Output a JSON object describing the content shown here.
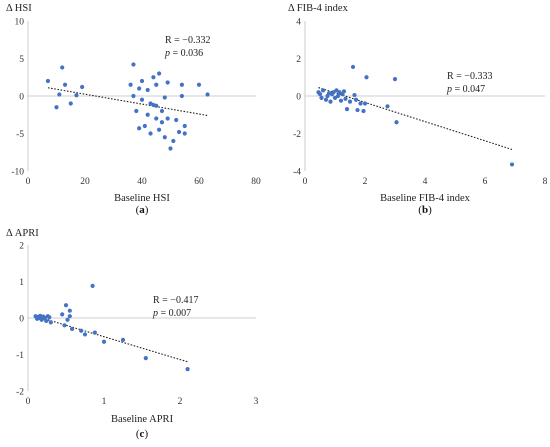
{
  "chart_data": [
    {
      "type": "scatter",
      "panel": "(a)",
      "panel_letter": "a",
      "ylabel": "Δ HSI",
      "xlabel": "Baseline HSI",
      "xlim": [
        0,
        80
      ],
      "ylim": [
        -10,
        10
      ],
      "xticks": [
        0,
        20,
        40,
        60,
        80
      ],
      "yticks": [
        -10,
        -5,
        0,
        5,
        10
      ],
      "annotation_r": "R = −0.332",
      "annotation_p_label": "p",
      "annotation_p_value": " = 0.036",
      "trendline": {
        "x": [
          7,
          63
        ],
        "y": [
          1.1,
          -2.6
        ]
      },
      "points": [
        [
          7,
          2.0
        ],
        [
          10,
          -1.5
        ],
        [
          11,
          0.2
        ],
        [
          12,
          3.8
        ],
        [
          13,
          1.5
        ],
        [
          15,
          -1.0
        ],
        [
          17,
          0.1
        ],
        [
          19,
          1.2
        ],
        [
          36,
          1.5
        ],
        [
          37,
          4.2
        ],
        [
          37,
          0.0
        ],
        [
          38,
          -2.0
        ],
        [
          39,
          -4.3
        ],
        [
          39,
          1.0
        ],
        [
          40,
          2.0
        ],
        [
          40,
          -0.5
        ],
        [
          41,
          -4.0
        ],
        [
          42,
          -2.5
        ],
        [
          42,
          0.8
        ],
        [
          43,
          -5.0
        ],
        [
          43,
          -1.0
        ],
        [
          44,
          -1.2
        ],
        [
          44,
          2.5
        ],
        [
          45,
          -1.3
        ],
        [
          45,
          -3.0
        ],
        [
          45,
          1.5
        ],
        [
          46,
          3.0
        ],
        [
          46,
          -4.5
        ],
        [
          47,
          -2.0
        ],
        [
          47,
          -3.5
        ],
        [
          48,
          -5.5
        ],
        [
          48,
          -0.2
        ],
        [
          49,
          1.8
        ],
        [
          49,
          -3.0
        ],
        [
          50,
          -7.0
        ],
        [
          51,
          -6.0
        ],
        [
          52,
          -3.2
        ],
        [
          53,
          -4.8
        ],
        [
          54,
          1.5
        ],
        [
          54,
          0.0
        ],
        [
          55,
          -4.0
        ],
        [
          55,
          -5.0
        ],
        [
          60,
          1.5
        ],
        [
          63,
          0.2
        ]
      ]
    },
    {
      "type": "scatter",
      "panel": "(b)",
      "panel_letter": "b",
      "ylabel": "Δ FIB-4 index",
      "xlabel": "Baseline FIB-4 index",
      "xlim": [
        0,
        8
      ],
      "ylim": [
        -4,
        4
      ],
      "xticks": [
        0,
        2,
        4,
        6,
        8
      ],
      "yticks": [
        -4,
        -2,
        0,
        2,
        4
      ],
      "annotation_r": "R = −0.333",
      "annotation_p_label": "p",
      "annotation_p_value": " = 0.047",
      "trendline": {
        "x": [
          0.45,
          6.9
        ],
        "y": [
          0.45,
          -2.85
        ]
      },
      "points": [
        [
          0.45,
          0.2
        ],
        [
          0.5,
          0.1
        ],
        [
          0.55,
          -0.1
        ],
        [
          0.6,
          0.3
        ],
        [
          0.7,
          -0.2
        ],
        [
          0.75,
          0.0
        ],
        [
          0.8,
          0.15
        ],
        [
          0.85,
          -0.3
        ],
        [
          0.9,
          0.1
        ],
        [
          0.95,
          0.2
        ],
        [
          1.0,
          -0.1
        ],
        [
          1.05,
          0.3
        ],
        [
          1.1,
          0.0
        ],
        [
          1.15,
          0.2
        ],
        [
          1.2,
          -0.25
        ],
        [
          1.25,
          0.1
        ],
        [
          1.3,
          0.25
        ],
        [
          1.35,
          -0.15
        ],
        [
          1.4,
          -0.7
        ],
        [
          1.5,
          -0.3
        ],
        [
          1.6,
          1.55
        ],
        [
          1.65,
          0.05
        ],
        [
          1.7,
          -0.2
        ],
        [
          1.75,
          -0.75
        ],
        [
          1.85,
          -0.4
        ],
        [
          1.95,
          -0.8
        ],
        [
          2.0,
          -0.4
        ],
        [
          2.05,
          1.0
        ],
        [
          2.75,
          -0.55
        ],
        [
          3.0,
          0.9
        ],
        [
          3.05,
          -1.4
        ],
        [
          6.9,
          -3.65
        ]
      ]
    },
    {
      "type": "scatter",
      "panel": "(c)",
      "panel_letter": "c",
      "ylabel": "Δ APRI",
      "xlabel": "Baseline APRI",
      "xlim": [
        0,
        3
      ],
      "ylim": [
        -2,
        2
      ],
      "xticks": [
        0,
        1,
        2,
        3
      ],
      "yticks": [
        -2,
        -1,
        0,
        1,
        2
      ],
      "annotation_r": "R = −0.417",
      "annotation_p_label": "p",
      "annotation_p_value": " = 0.007",
      "trendline": {
        "x": [
          0.1,
          2.1
        ],
        "y": [
          0.05,
          -1.2
        ]
      },
      "points": [
        [
          0.1,
          0.05
        ],
        [
          0.12,
          -0.02
        ],
        [
          0.14,
          0.03
        ],
        [
          0.15,
          0.0
        ],
        [
          0.16,
          0.06
        ],
        [
          0.18,
          -0.05
        ],
        [
          0.2,
          0.04
        ],
        [
          0.22,
          0.0
        ],
        [
          0.24,
          -0.08
        ],
        [
          0.26,
          0.05
        ],
        [
          0.28,
          0.02
        ],
        [
          0.3,
          -0.12
        ],
        [
          0.45,
          0.1
        ],
        [
          0.48,
          -0.2
        ],
        [
          0.5,
          0.35
        ],
        [
          0.52,
          -0.05
        ],
        [
          0.55,
          0.2
        ],
        [
          0.55,
          0.05
        ],
        [
          0.58,
          -0.3
        ],
        [
          0.7,
          -0.35
        ],
        [
          0.75,
          -0.45
        ],
        [
          0.85,
          0.88
        ],
        [
          0.88,
          -0.4
        ],
        [
          1.0,
          -0.65
        ],
        [
          1.25,
          -0.6
        ],
        [
          1.55,
          -1.1
        ],
        [
          2.1,
          -1.4
        ]
      ]
    }
  ]
}
